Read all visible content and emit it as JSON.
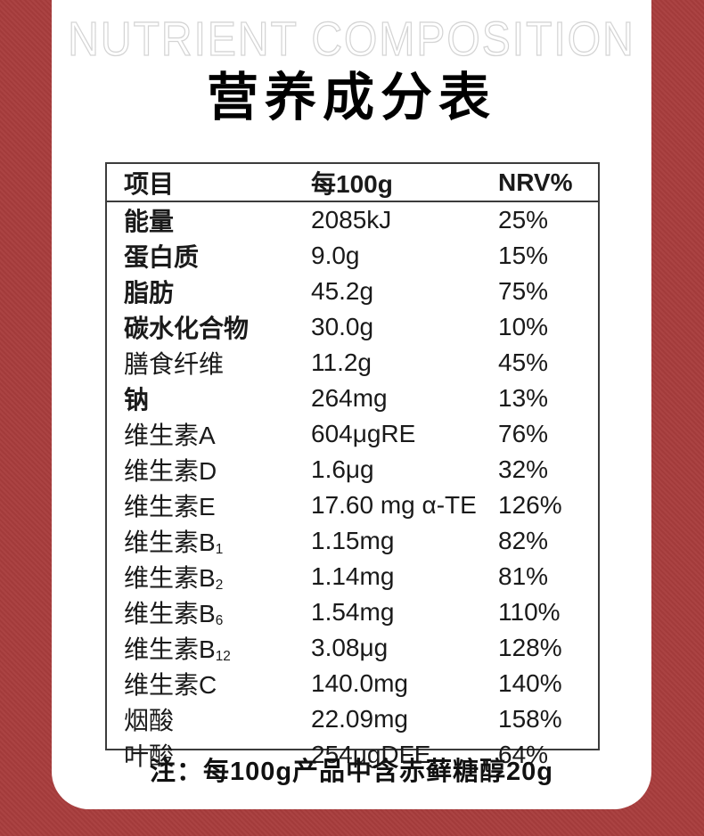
{
  "page": {
    "frame_color": "#a83d3d",
    "panel_color": "#ffffff"
  },
  "header": {
    "en_title": "NUTRIENT COMPOSITION",
    "cn_title": "营养成分表"
  },
  "table": {
    "columns": [
      "项目",
      "每100g",
      "NRV%"
    ],
    "rows": [
      {
        "name": "能量",
        "value": "2085kJ",
        "nrv": "25%"
      },
      {
        "name": "蛋白质",
        "value": "9.0g",
        "nrv": "15%"
      },
      {
        "name": "脂肪",
        "value": "45.2g",
        "nrv": "75%"
      },
      {
        "name": "碳水化合物",
        "value": "30.0g",
        "nrv": "10%"
      },
      {
        "name": "膳食纤维",
        "value": "11.2g",
        "nrv": "45%"
      },
      {
        "name": "钠",
        "value": "264mg",
        "nrv": "13%"
      },
      {
        "name": "维生素A",
        "value": "604μgRE",
        "nrv": "76%"
      },
      {
        "name": "维生素D",
        "value": "1.6μg",
        "nrv": "32%"
      },
      {
        "name": "维生素E",
        "value": "17.60 mg α-TE",
        "nrv": "126%"
      },
      {
        "name": "维生素B",
        "sub": "1",
        "value": "1.15mg",
        "nrv": "82%"
      },
      {
        "name": "维生素B",
        "sub": "2",
        "value": "1.14mg",
        "nrv": "81%"
      },
      {
        "name": "维生素B",
        "sub": "6",
        "value": "1.54mg",
        "nrv": "110%"
      },
      {
        "name": "维生素B",
        "sub": "12",
        "value": "3.08μg",
        "nrv": "128%"
      },
      {
        "name": "维生素C",
        "value": "140.0mg",
        "nrv": "140%"
      },
      {
        "name": "烟酸",
        "value": "22.09mg",
        "nrv": "158%"
      },
      {
        "name": "叶酸",
        "value": "254μgDFE",
        "nrv": "64%"
      }
    ]
  },
  "footnote": "注：每100g产品中含赤藓糖醇20g"
}
